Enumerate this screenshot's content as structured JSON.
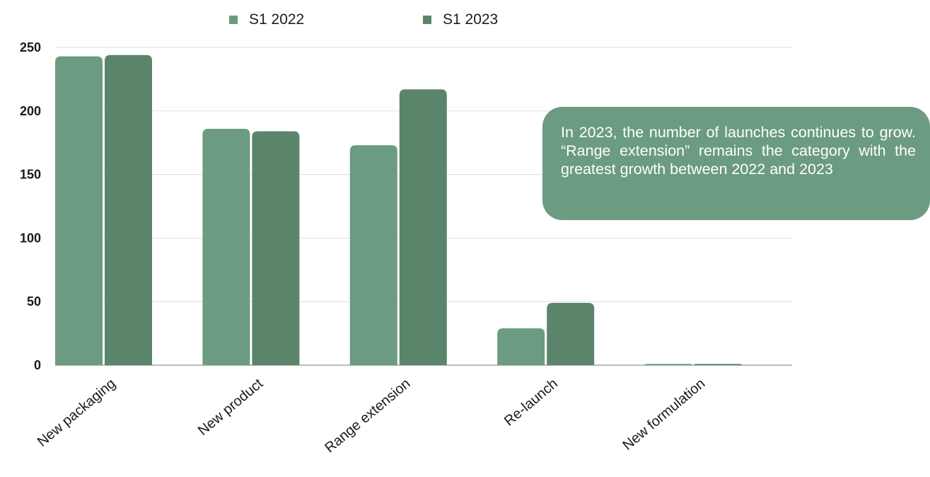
{
  "chart_data": {
    "type": "bar",
    "categories": [
      "New packaging",
      "New product",
      "Range extension",
      "Re-launch",
      "New formulation"
    ],
    "series": [
      {
        "name": "S1 2022",
        "values": [
          243,
          186,
          173,
          29,
          1
        ],
        "color": "#6b9b80"
      },
      {
        "name": "S1 2023",
        "values": [
          244,
          184,
          217,
          49,
          1
        ],
        "color": "#5a856b"
      }
    ],
    "ylim": [
      0,
      250
    ],
    "yticks": [
      0,
      50,
      100,
      150,
      200,
      250
    ],
    "grid": true,
    "legend_position": "top-center",
    "annotation": "In 2023, the number of launches continues to grow. “Range extension” remains the category with the greatest growth between 2022 and 2023"
  }
}
